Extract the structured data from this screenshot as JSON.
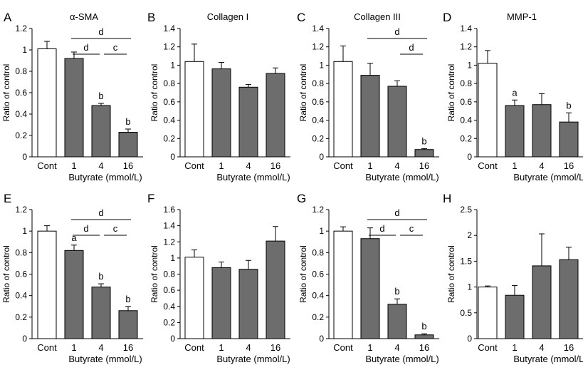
{
  "chart_data": [
    {
      "panel": "A",
      "title": "α-SMA",
      "type": "bar",
      "ylabel": "Ratio of control",
      "xlabel": "Butyrate (mmol/L)",
      "categories": [
        "Cont",
        "1",
        "4",
        "16"
      ],
      "values": [
        1.01,
        0.92,
        0.48,
        0.23
      ],
      "errors": [
        0.07,
        0.06,
        0.02,
        0.03
      ],
      "ylim": [
        0,
        1.2
      ],
      "yticks": [
        "0",
        "0.2",
        "0.4",
        "0.6",
        "0.8",
        "1",
        "1.2"
      ],
      "bar_letters": [
        "",
        "",
        "b",
        "b"
      ],
      "brackets": [
        {
          "from": 1,
          "to": 3,
          "label": "d",
          "level": 0
        },
        {
          "from": 1,
          "to": 2,
          "label": "d",
          "level": 1
        },
        {
          "from": 2,
          "to": 3,
          "label": "c",
          "level": 1
        }
      ]
    },
    {
      "panel": "B",
      "title": "Collagen I",
      "type": "bar",
      "ylabel": "Ratio of control",
      "xlabel": "Butyrate (mmol/L)",
      "categories": [
        "Cont",
        "1",
        "4",
        "16"
      ],
      "values": [
        1.04,
        0.96,
        0.76,
        0.91
      ],
      "errors": [
        0.19,
        0.07,
        0.03,
        0.06
      ],
      "ylim": [
        0,
        1.4
      ],
      "yticks": [
        "0",
        "0.2",
        "0.4",
        "0.6",
        "0.8",
        "1",
        "1.2",
        "1.4"
      ],
      "bar_letters": [
        "",
        "",
        "",
        ""
      ],
      "brackets": []
    },
    {
      "panel": "C",
      "title": "Collagen III",
      "type": "bar",
      "ylabel": "Ratio of control",
      "xlabel": "Butyrate (mmol/L)",
      "categories": [
        "Cont",
        "1",
        "4",
        "16"
      ],
      "values": [
        1.04,
        0.89,
        0.77,
        0.08
      ],
      "errors": [
        0.17,
        0.13,
        0.06,
        0.01
      ],
      "ylim": [
        0,
        1.4
      ],
      "yticks": [
        "0",
        "0.2",
        "0.4",
        "0.6",
        "0.8",
        "1",
        "1.2",
        "1.4"
      ],
      "bar_letters": [
        "",
        "",
        "",
        "b"
      ],
      "brackets": [
        {
          "from": 1,
          "to": 3,
          "label": "d",
          "level": 0
        },
        {
          "from": 2,
          "to": 3,
          "label": "d",
          "level": 1
        }
      ]
    },
    {
      "panel": "D",
      "title": "MMP-1",
      "type": "bar",
      "ylabel": "Ratio of control",
      "xlabel": "Butyrate (mmol/L)",
      "categories": [
        "Cont",
        "1",
        "4",
        "16"
      ],
      "values": [
        1.02,
        0.56,
        0.57,
        0.38
      ],
      "errors": [
        0.14,
        0.06,
        0.12,
        0.1
      ],
      "ylim": [
        0,
        1.4
      ],
      "yticks": [
        "0",
        "0.2",
        "0.4",
        "0.6",
        "0.8",
        "1",
        "1.2",
        "1.4"
      ],
      "bar_letters": [
        "",
        "a",
        "",
        "b"
      ],
      "brackets": []
    },
    {
      "panel": "E",
      "title": "",
      "type": "bar",
      "ylabel": "Ratio of control",
      "xlabel": "Butyrate (mmol/L)",
      "categories": [
        "Cont",
        "1",
        "4",
        "16"
      ],
      "values": [
        1.0,
        0.82,
        0.48,
        0.26
      ],
      "errors": [
        0.05,
        0.05,
        0.03,
        0.04
      ],
      "ylim": [
        0,
        1.2
      ],
      "yticks": [
        "0",
        "0.2",
        "0.4",
        "0.6",
        "0.8",
        "1",
        "1.2"
      ],
      "bar_letters": [
        "",
        "a",
        "b",
        "b"
      ],
      "brackets": [
        {
          "from": 1,
          "to": 3,
          "label": "d",
          "level": 0
        },
        {
          "from": 1,
          "to": 2,
          "label": "d",
          "level": 1
        },
        {
          "from": 2,
          "to": 3,
          "label": "c",
          "level": 1
        }
      ]
    },
    {
      "panel": "F",
      "title": "",
      "type": "bar",
      "ylabel": "Ratio of control",
      "xlabel": "Butyrate (mmol/L)",
      "categories": [
        "Cont",
        "1",
        "4",
        "16"
      ],
      "values": [
        1.01,
        0.88,
        0.86,
        1.21
      ],
      "errors": [
        0.09,
        0.07,
        0.11,
        0.18
      ],
      "ylim": [
        0,
        1.6
      ],
      "yticks": [
        "0",
        "0.2",
        "0.4",
        "0.6",
        "0.8",
        "1",
        "1.2",
        "1.4",
        "1.6"
      ],
      "bar_letters": [
        "",
        "",
        "",
        ""
      ],
      "brackets": []
    },
    {
      "panel": "G",
      "title": "",
      "type": "bar",
      "ylabel": "Ratio of control",
      "xlabel": "Butyrate (mmol/L)",
      "categories": [
        "Cont",
        "1",
        "4",
        "16"
      ],
      "values": [
        1.0,
        0.93,
        0.32,
        0.035
      ],
      "errors": [
        0.04,
        0.1,
        0.05,
        0.01
      ],
      "ylim": [
        0,
        1.2
      ],
      "yticks": [
        "0",
        "0.2",
        "0.4",
        "0.6",
        "0.8",
        "1",
        "1.2"
      ],
      "bar_letters": [
        "",
        "",
        "b",
        "b"
      ],
      "brackets": [
        {
          "from": 1,
          "to": 3,
          "label": "d",
          "level": 0
        },
        {
          "from": 1,
          "to": 2,
          "label": "d",
          "level": 1
        },
        {
          "from": 2,
          "to": 3,
          "label": "c",
          "level": 1
        }
      ]
    },
    {
      "panel": "H",
      "title": "",
      "type": "bar",
      "ylabel": "Ratio of control",
      "xlabel": "Butyrate (mmol/L)",
      "categories": [
        "Cont",
        "1",
        "4",
        "16"
      ],
      "values": [
        1.0,
        0.84,
        1.41,
        1.53
      ],
      "errors": [
        0.02,
        0.19,
        0.62,
        0.24
      ],
      "ylim": [
        0,
        2.5
      ],
      "yticks": [
        "0",
        "0.5",
        "1",
        "1.5",
        "2",
        "2.5"
      ],
      "bar_letters": [
        "",
        "",
        "",
        ""
      ],
      "brackets": []
    }
  ],
  "colors": {
    "control_bar": "#ffffff",
    "treatment_bar": "#6d6d6d",
    "line": "#000000"
  }
}
